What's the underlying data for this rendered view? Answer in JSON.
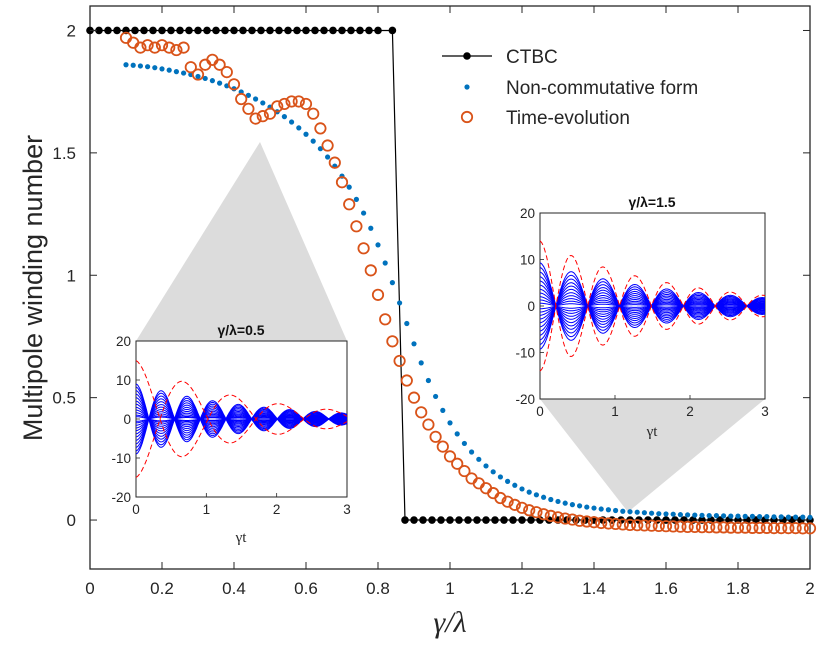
{
  "colors": {
    "ctbc": "#000000",
    "noncomm": "#0072BD",
    "time": "#D95319",
    "solid": "#0000FF",
    "dashed": "#FF0000",
    "shade": "#D3D3D3"
  },
  "main_text": {
    "ylabel": "Multipole winding number",
    "xlabel": "γ/λ",
    "legend": [
      "CTBC",
      "Non-commutative form",
      "Time-evolution"
    ]
  },
  "insets": [
    {
      "title": "γ/λ=0.5",
      "xlabel": "γt",
      "gamma_over_lambda": 0.5
    },
    {
      "title": "γ/λ=1.5",
      "xlabel": "γt",
      "gamma_over_lambda": 1.5
    }
  ],
  "chart_data": [
    {
      "type": "line",
      "title": "",
      "xlabel": "γ/λ",
      "ylabel": "Multipole winding number",
      "xlim": [
        0,
        2
      ],
      "ylim": [
        -0.2,
        2.1
      ],
      "xticks": [
        "0",
        "0.2",
        "0.4",
        "0.6",
        "0.8",
        "1",
        "1.2",
        "1.4",
        "1.6",
        "1.8",
        "2"
      ],
      "yticks": [
        "0",
        "0.5",
        "1",
        "1.5",
        "2"
      ],
      "legend_position": "top-right",
      "series": [
        {
          "name": "CTBC",
          "style": "line-with-dots",
          "points": [
            [
              0,
              2
            ],
            [
              0.025,
              2
            ],
            [
              0.05,
              2
            ],
            [
              0.075,
              2
            ],
            [
              0.1,
              2
            ],
            [
              0.125,
              2
            ],
            [
              0.15,
              2
            ],
            [
              0.175,
              2
            ],
            [
              0.2,
              2
            ],
            [
              0.225,
              2
            ],
            [
              0.25,
              2
            ],
            [
              0.275,
              2
            ],
            [
              0.3,
              2
            ],
            [
              0.325,
              2
            ],
            [
              0.35,
              2
            ],
            [
              0.375,
              2
            ],
            [
              0.4,
              2
            ],
            [
              0.425,
              2
            ],
            [
              0.45,
              2
            ],
            [
              0.475,
              2
            ],
            [
              0.5,
              2
            ],
            [
              0.525,
              2
            ],
            [
              0.55,
              2
            ],
            [
              0.575,
              2
            ],
            [
              0.6,
              2
            ],
            [
              0.625,
              2
            ],
            [
              0.65,
              2
            ],
            [
              0.675,
              2
            ],
            [
              0.7,
              2
            ],
            [
              0.725,
              2
            ],
            [
              0.75,
              2
            ],
            [
              0.775,
              2
            ],
            [
              0.8,
              2
            ],
            [
              0.84,
              2
            ],
            [
              0.875,
              0
            ],
            [
              0.9,
              0
            ],
            [
              0.925,
              0
            ],
            [
              0.95,
              0
            ],
            [
              0.975,
              0
            ],
            [
              1.0,
              0
            ],
            [
              1.025,
              0
            ],
            [
              1.05,
              0
            ],
            [
              1.075,
              0
            ],
            [
              1.1,
              0
            ],
            [
              1.125,
              0
            ],
            [
              1.15,
              0
            ],
            [
              1.175,
              0
            ],
            [
              1.2,
              0
            ],
            [
              1.225,
              0
            ],
            [
              1.25,
              0
            ],
            [
              1.275,
              0
            ],
            [
              1.3,
              0
            ],
            [
              1.325,
              0
            ],
            [
              1.35,
              0
            ],
            [
              1.375,
              0
            ],
            [
              1.4,
              0
            ],
            [
              1.425,
              0
            ],
            [
              1.45,
              0
            ],
            [
              1.475,
              0
            ],
            [
              1.5,
              0
            ],
            [
              1.525,
              0
            ],
            [
              1.55,
              0
            ],
            [
              1.575,
              0
            ],
            [
              1.6,
              0
            ],
            [
              1.625,
              0
            ],
            [
              1.65,
              0
            ],
            [
              1.675,
              0
            ],
            [
              1.7,
              0
            ],
            [
              1.725,
              0
            ],
            [
              1.75,
              0
            ],
            [
              1.775,
              0
            ],
            [
              1.8,
              0
            ],
            [
              1.825,
              0
            ],
            [
              1.85,
              0
            ],
            [
              1.875,
              0
            ],
            [
              1.9,
              0
            ],
            [
              1.925,
              0
            ],
            [
              1.95,
              0
            ],
            [
              1.975,
              0
            ],
            [
              2.0,
              0
            ]
          ]
        },
        {
          "name": "Non-commutative form",
          "style": "dots",
          "x": [
            0.1,
            0.12,
            0.14,
            0.16,
            0.18,
            0.2,
            0.22,
            0.24,
            0.26,
            0.28,
            0.3,
            0.32,
            0.34,
            0.36,
            0.38,
            0.4,
            0.42,
            0.44,
            0.46,
            0.48,
            0.5,
            0.52,
            0.54,
            0.56,
            0.58,
            0.6,
            0.62,
            0.64,
            0.66,
            0.68,
            0.7,
            0.72,
            0.74,
            0.76,
            0.78,
            0.8,
            0.82,
            0.84,
            0.86,
            0.88,
            0.9,
            0.92,
            0.94,
            0.96,
            0.98,
            1.0,
            1.02,
            1.04,
            1.06,
            1.08,
            1.1,
            1.12,
            1.14,
            1.16,
            1.18,
            1.2,
            1.22,
            1.24,
            1.26,
            1.28,
            1.3,
            1.32,
            1.34,
            1.36,
            1.38,
            1.4,
            1.42,
            1.44,
            1.46,
            1.48,
            1.5,
            1.52,
            1.54,
            1.56,
            1.58,
            1.6,
            1.62,
            1.64,
            1.66,
            1.68,
            1.7,
            1.72,
            1.74,
            1.76,
            1.78,
            1.8,
            1.82,
            1.84,
            1.86,
            1.88,
            1.9,
            1.92,
            1.94,
            1.96,
            1.98,
            2.0
          ],
          "y": [
            1.86,
            1.858,
            1.855,
            1.852,
            1.848,
            1.843,
            1.838,
            1.832,
            1.826,
            1.82,
            1.812,
            1.804,
            1.795,
            1.785,
            1.774,
            1.762,
            1.749,
            1.735,
            1.72,
            1.704,
            1.687,
            1.668,
            1.648,
            1.626,
            1.602,
            1.576,
            1.548,
            1.517,
            1.483,
            1.446,
            1.405,
            1.36,
            1.31,
            1.254,
            1.192,
            1.124,
            1.05,
            0.97,
            0.887,
            0.803,
            0.72,
            0.642,
            0.57,
            0.505,
            0.448,
            0.397,
            0.352,
            0.313,
            0.278,
            0.248,
            0.221,
            0.197,
            0.176,
            0.158,
            0.142,
            0.127,
            0.114,
            0.103,
            0.093,
            0.084,
            0.076,
            0.069,
            0.063,
            0.058,
            0.053,
            0.049,
            0.045,
            0.042,
            0.039,
            0.036,
            0.034,
            0.032,
            0.03,
            0.028,
            0.026,
            0.025,
            0.024,
            0.022,
            0.021,
            0.02,
            0.019,
            0.018,
            0.018,
            0.017,
            0.016,
            0.016,
            0.015,
            0.015,
            0.014,
            0.014,
            0.013,
            0.013,
            0.012,
            0.012,
            0.012,
            0.011
          ]
        },
        {
          "name": "Time-evolution",
          "style": "open-circles",
          "x": [
            0.1,
            0.12,
            0.14,
            0.16,
            0.18,
            0.2,
            0.22,
            0.24,
            0.26,
            0.28,
            0.3,
            0.32,
            0.34,
            0.36,
            0.38,
            0.4,
            0.42,
            0.44,
            0.46,
            0.48,
            0.5,
            0.52,
            0.54,
            0.56,
            0.58,
            0.6,
            0.62,
            0.64,
            0.66,
            0.68,
            0.7,
            0.72,
            0.74,
            0.76,
            0.78,
            0.8,
            0.82,
            0.84,
            0.86,
            0.88,
            0.9,
            0.92,
            0.94,
            0.96,
            0.98,
            1.0,
            1.02,
            1.04,
            1.06,
            1.08,
            1.1,
            1.12,
            1.14,
            1.16,
            1.18,
            1.2,
            1.22,
            1.24,
            1.26,
            1.28,
            1.3,
            1.32,
            1.34,
            1.36,
            1.38,
            1.4,
            1.42,
            1.44,
            1.46,
            1.48,
            1.5,
            1.52,
            1.54,
            1.56,
            1.58,
            1.6,
            1.62,
            1.64,
            1.66,
            1.68,
            1.7,
            1.72,
            1.74,
            1.76,
            1.78,
            1.8,
            1.82,
            1.84,
            1.86,
            1.88,
            1.9,
            1.92,
            1.94,
            1.96,
            1.98,
            2.0
          ],
          "y": [
            1.97,
            1.95,
            1.93,
            1.94,
            1.93,
            1.94,
            1.93,
            1.92,
            1.93,
            1.85,
            1.82,
            1.86,
            1.88,
            1.86,
            1.83,
            1.78,
            1.72,
            1.68,
            1.64,
            1.65,
            1.66,
            1.69,
            1.7,
            1.71,
            1.71,
            1.7,
            1.66,
            1.6,
            1.53,
            1.46,
            1.38,
            1.29,
            1.2,
            1.11,
            1.02,
            0.92,
            0.82,
            0.73,
            0.65,
            0.57,
            0.5,
            0.44,
            0.39,
            0.34,
            0.3,
            0.26,
            0.23,
            0.2,
            0.17,
            0.15,
            0.13,
            0.11,
            0.09,
            0.075,
            0.062,
            0.05,
            0.04,
            0.032,
            0.024,
            0.017,
            0.011,
            0.006,
            0.002,
            -0.003,
            -0.006,
            -0.009,
            -0.012,
            -0.014,
            -0.016,
            -0.018,
            -0.02,
            -0.021,
            -0.022,
            -0.023,
            -0.024,
            -0.025,
            -0.026,
            -0.027,
            -0.028,
            -0.028,
            -0.029,
            -0.029,
            -0.03,
            -0.03,
            -0.031,
            -0.031,
            -0.031,
            -0.032,
            -0.032,
            -0.032,
            -0.033,
            -0.033,
            -0.033,
            -0.033,
            -0.034,
            -0.034
          ]
        }
      ]
    },
    {
      "type": "line",
      "title": "γ/λ=0.5",
      "xlabel": "γt",
      "ylabel": "",
      "xlim": [
        0,
        3
      ],
      "ylim": [
        -20,
        20
      ],
      "xticks": [
        "0",
        "1",
        "2",
        "3"
      ],
      "yticks": [
        "-20",
        "-10",
        "0",
        "10",
        "20"
      ],
      "envelope": {
        "gamma": 0.5,
        "omega": 8.6,
        "omega_dashed": 4.6,
        "decay": 0.6,
        "amplitudes": [
          0.6,
          1.0,
          1.6,
          2.3,
          3.0,
          3.8,
          4.6,
          5.5,
          6.4,
          7.3,
          8.2,
          9.0
        ],
        "dashed_amplitude": 15
      },
      "series": [
        {
          "name": "solid curves",
          "style": "solid",
          "count": 12
        },
        {
          "name": "dashed envelope",
          "style": "dashed",
          "count": 2
        }
      ]
    },
    {
      "type": "line",
      "title": "γ/λ=1.5",
      "xlabel": "γt",
      "ylabel": "",
      "xlim": [
        0,
        3
      ],
      "ylim": [
        -20,
        20
      ],
      "xticks": [
        "0",
        "1",
        "2",
        "3"
      ],
      "yticks": [
        "-20",
        "-10",
        "0",
        "10",
        "20"
      ],
      "envelope": {
        "gamma": 1.5,
        "omega": 7.4,
        "omega_dashed": 7.4,
        "decay": 0.55,
        "amplitudes": [
          0.6,
          1.3,
          2.0,
          2.8,
          3.6,
          4.5,
          5.4,
          6.3,
          7.3,
          8.3,
          9.3
        ],
        "dashed_amplitude": 14
      },
      "series": [
        {
          "name": "solid curves",
          "style": "solid",
          "count": 11
        },
        {
          "name": "dashed envelope",
          "style": "dashed",
          "count": 2
        }
      ]
    }
  ]
}
